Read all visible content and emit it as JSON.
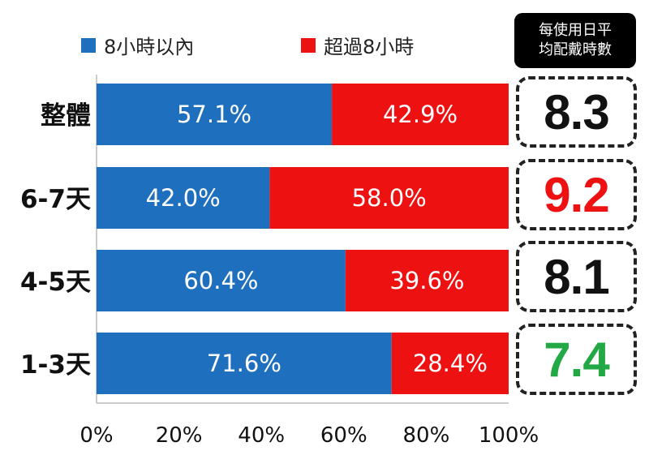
{
  "legend": {
    "within": "8小時以內",
    "over": "超過8小時"
  },
  "side_header": {
    "line1": "每使用日平",
    "line2": "均配戴時數"
  },
  "colors": {
    "within": "#1f6fbf",
    "over": "#ee1111",
    "avg_default": "#111111",
    "avg_high": "#ee1111",
    "avg_low": "#22a845"
  },
  "averages": [
    {
      "value": "8.3",
      "color": "#111111"
    },
    {
      "value": "9.2",
      "color": "#ee1111"
    },
    {
      "value": "8.1",
      "color": "#111111"
    },
    {
      "value": "7.4",
      "color": "#22a845"
    }
  ],
  "chart_data": {
    "type": "bar",
    "orientation": "horizontal",
    "stacked": true,
    "categories": [
      "整體",
      "6-7天",
      "4-5天",
      "1-3天"
    ],
    "series": [
      {
        "name": "8小時以內",
        "values": [
          57.1,
          42.0,
          60.4,
          71.6
        ],
        "labels": [
          "57.1%",
          "42.0%",
          "60.4%",
          "71.6%"
        ]
      },
      {
        "name": "超過8小時",
        "values": [
          42.9,
          58.0,
          39.6,
          28.4
        ],
        "labels": [
          "42.9%",
          "58.0%",
          "39.6%",
          "28.4%"
        ]
      }
    ],
    "xlim": [
      0,
      100
    ],
    "x_ticks": [
      "0%",
      "20%",
      "40%",
      "60%",
      "80%",
      "100%"
    ],
    "legend_position": "top"
  }
}
